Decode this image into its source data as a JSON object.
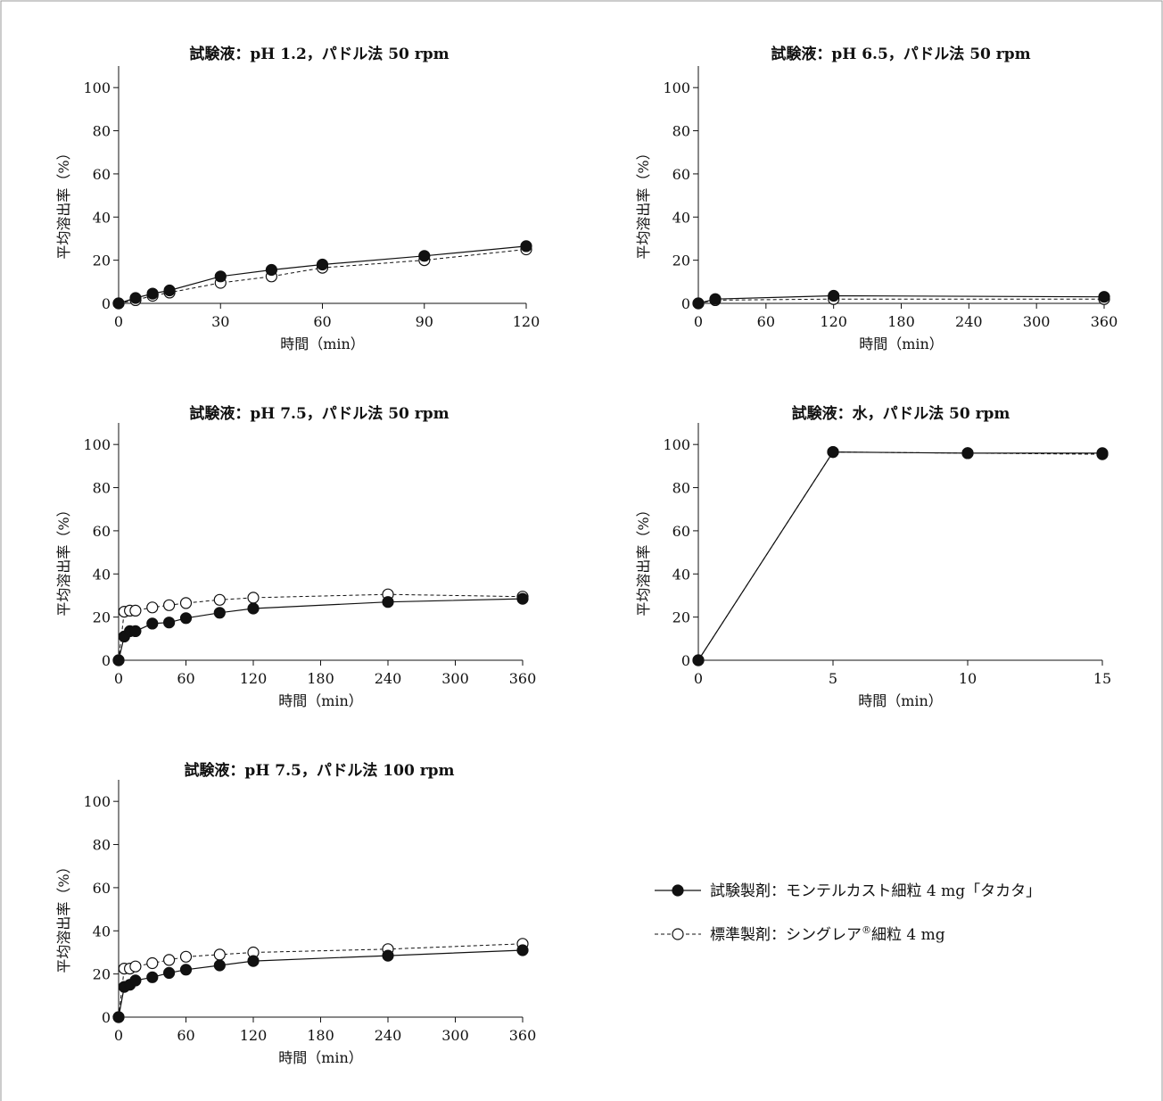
{
  "chart_data": [
    {
      "type": "line",
      "title": "試験液：pH 1.2，パドル法 50 rpm",
      "xlabel": "時間（min）",
      "ylabel": "平均溶出率（%）",
      "xlim": [
        0,
        120
      ],
      "ylim": [
        0,
        110
      ],
      "xticks": [
        0,
        30,
        60,
        90,
        120
      ],
      "yticks": [
        0,
        20,
        40,
        60,
        80,
        100
      ],
      "x": [
        0,
        5,
        10,
        15,
        30,
        45,
        60,
        90,
        120
      ],
      "series": [
        {
          "name": "試験製剤",
          "values": [
            0,
            2.5,
            4.5,
            6,
            12.5,
            15.5,
            18,
            22,
            26.5
          ]
        },
        {
          "name": "標準製剤",
          "values": [
            0,
            1.5,
            3.5,
            5,
            9.5,
            12.5,
            16.5,
            20,
            25
          ]
        }
      ]
    },
    {
      "type": "line",
      "title": "試験液：pH 6.5，パドル法 50 rpm",
      "xlabel": "時間（min）",
      "ylabel": "平均溶出率（%）",
      "xlim": [
        0,
        360
      ],
      "ylim": [
        0,
        110
      ],
      "xticks": [
        0,
        60,
        120,
        180,
        240,
        300,
        360
      ],
      "yticks": [
        0,
        20,
        40,
        60,
        80,
        100
      ],
      "x": [
        0,
        15,
        120,
        360
      ],
      "series": [
        {
          "name": "試験製剤",
          "values": [
            0,
            2,
            3.5,
            3
          ]
        },
        {
          "name": "標準製剤",
          "values": [
            0,
            1.5,
            2,
            2
          ]
        }
      ]
    },
    {
      "type": "line",
      "title": "試験液：pH 7.5，パドル法 50 rpm",
      "xlabel": "時間（min）",
      "ylabel": "平均溶出率（%）",
      "xlim": [
        0,
        360
      ],
      "ylim": [
        0,
        110
      ],
      "xticks": [
        0,
        60,
        120,
        180,
        240,
        300,
        360
      ],
      "yticks": [
        0,
        20,
        40,
        60,
        80,
        100
      ],
      "x": [
        0,
        5,
        10,
        15,
        30,
        45,
        60,
        90,
        120,
        240,
        360
      ],
      "series": [
        {
          "name": "試験製剤",
          "values": [
            0,
            11,
            13.5,
            13.5,
            17,
            17.5,
            19.5,
            22,
            24,
            27,
            28.5
          ]
        },
        {
          "name": "標準製剤",
          "values": [
            0,
            22.5,
            23,
            23,
            24.5,
            25.5,
            26.5,
            28,
            29,
            30.5,
            29.5
          ]
        }
      ]
    },
    {
      "type": "line",
      "title": "試験液：水，パドル法 50 rpm",
      "xlabel": "時間（min）",
      "ylabel": "平均溶出率（%）",
      "xlim": [
        0,
        15
      ],
      "ylim": [
        0,
        110
      ],
      "xticks": [
        0,
        5,
        10,
        15
      ],
      "yticks": [
        0,
        20,
        40,
        60,
        80,
        100
      ],
      "x": [
        0,
        5,
        10,
        15
      ],
      "series": [
        {
          "name": "試験製剤",
          "values": [
            0,
            96.5,
            96,
            96
          ]
        },
        {
          "name": "標準製剤",
          "values": [
            0,
            96.5,
            96,
            95.5
          ]
        }
      ]
    },
    {
      "type": "line",
      "title": "試験液：pH 7.5，パドル法 100 rpm",
      "xlabel": "時間（min）",
      "ylabel": "平均溶出率（%）",
      "xlim": [
        0,
        360
      ],
      "ylim": [
        0,
        110
      ],
      "xticks": [
        0,
        60,
        120,
        180,
        240,
        300,
        360
      ],
      "yticks": [
        0,
        20,
        40,
        60,
        80,
        100
      ],
      "x": [
        0,
        5,
        10,
        15,
        30,
        45,
        60,
        90,
        120,
        240,
        360
      ],
      "series": [
        {
          "name": "試験製剤",
          "values": [
            0,
            14,
            15,
            17,
            18.5,
            20.5,
            22,
            24,
            26,
            28.5,
            31
          ]
        },
        {
          "name": "標準製剤",
          "values": [
            0,
            22.5,
            22.5,
            23.5,
            25,
            26.5,
            28,
            29,
            30,
            31.5,
            34
          ]
        }
      ]
    }
  ],
  "legend": {
    "items": [
      {
        "style": "filled-circle-solid",
        "label": "試験製剤：モンテルカスト細粒 4 mg「タカタ」"
      },
      {
        "style": "open-circle-dashed",
        "label_main": "標準製剤：シングレア",
        "label_sup": "®",
        "label_tail": "細粒 4 mg"
      }
    ]
  },
  "colors": {
    "line": "#111111",
    "marker_fill_test": "#111111",
    "marker_fill_ref": "#ffffff",
    "frame": "#999999",
    "background": "#ffffff"
  }
}
